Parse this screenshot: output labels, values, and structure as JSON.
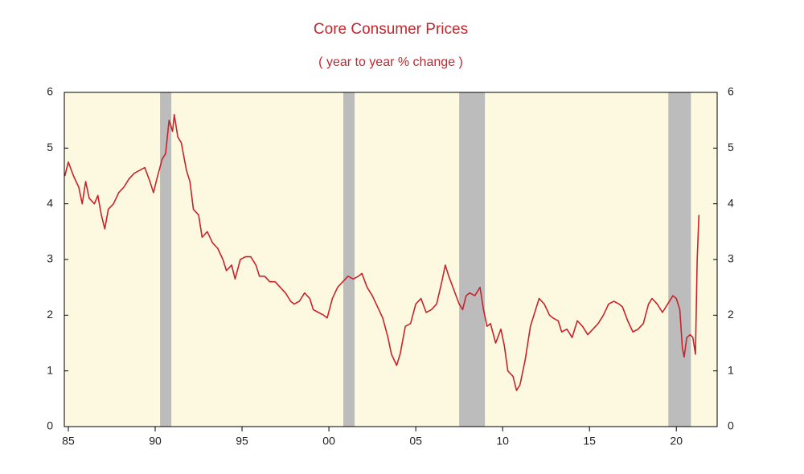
{
  "chart_data": {
    "type": "line",
    "title": "Core Consumer Prices",
    "subtitle": "( year to year % change )",
    "background": "#fdf9e1",
    "band_color": "#bcbcbc",
    "recession_bands": [
      {
        "start": 1990.28,
        "end": 1990.93
      },
      {
        "start": 2000.83,
        "end": 2001.48
      },
      {
        "start": 2007.5,
        "end": 2008.98
      },
      {
        "start": 2019.54,
        "end": 2020.84
      }
    ],
    "xlim": [
      1984.77,
      2022.35
    ],
    "xticks": [
      {
        "value": 1985,
        "label": "85"
      },
      {
        "value": 1990,
        "label": "90"
      },
      {
        "value": 1995,
        "label": "95"
      },
      {
        "value": 2000,
        "label": "00"
      },
      {
        "value": 2005,
        "label": "05"
      },
      {
        "value": 2010,
        "label": "10"
      },
      {
        "value": 2015,
        "label": "15"
      },
      {
        "value": 2020,
        "label": "20"
      }
    ],
    "ylim": [
      0,
      6
    ],
    "yticks": [
      0,
      1,
      2,
      3,
      4,
      5,
      6
    ],
    "y2lim": [
      0,
      6
    ],
    "y2ticks": [
      0,
      1,
      2,
      3,
      4,
      5,
      6
    ],
    "x": [
      1984.8,
      1985.0,
      1985.3,
      1985.6,
      1985.8,
      1986.0,
      1986.2,
      1986.5,
      1986.7,
      1986.9,
      1987.1,
      1987.3,
      1987.6,
      1987.9,
      1988.2,
      1988.5,
      1988.8,
      1989.1,
      1989.4,
      1989.7,
      1989.9,
      1990.1,
      1990.4,
      1990.6,
      1990.8,
      1991.0,
      1991.1,
      1991.3,
      1991.5,
      1991.8,
      1992.0,
      1992.2,
      1992.5,
      1992.7,
      1993.0,
      1993.3,
      1993.6,
      1993.9,
      1994.1,
      1994.4,
      1994.6,
      1994.9,
      1995.2,
      1995.5,
      1995.8,
      1996.0,
      1996.3,
      1996.6,
      1996.9,
      1997.2,
      1997.5,
      1997.8,
      1998.0,
      1998.3,
      1998.6,
      1998.9,
      1999.1,
      1999.4,
      1999.7,
      1999.9,
      2000.2,
      2000.5,
      2000.8,
      2001.1,
      2001.4,
      2001.7,
      2001.9,
      2002.2,
      2002.5,
      2002.8,
      2003.1,
      2003.4,
      2003.6,
      2003.9,
      2004.1,
      2004.4,
      2004.7,
      2005.0,
      2005.3,
      2005.6,
      2005.9,
      2006.2,
      2006.5,
      2006.7,
      2006.9,
      2007.2,
      2007.5,
      2007.7,
      2007.9,
      2008.1,
      2008.4,
      2008.7,
      2008.9,
      2009.1,
      2009.3,
      2009.6,
      2009.9,
      2010.1,
      2010.3,
      2010.6,
      2010.8,
      2011.0,
      2011.3,
      2011.6,
      2011.9,
      2012.1,
      2012.4,
      2012.7,
      2012.9,
      2013.2,
      2013.4,
      2013.7,
      2014.0,
      2014.3,
      2014.6,
      2014.9,
      2015.2,
      2015.5,
      2015.8,
      2016.1,
      2016.4,
      2016.7,
      2016.9,
      2017.2,
      2017.5,
      2017.8,
      2018.1,
      2018.4,
      2018.6,
      2018.9,
      2019.2,
      2019.5,
      2019.8,
      2020.0,
      2020.2,
      2020.35,
      2020.45,
      2020.6,
      2020.8,
      2020.95,
      2021.1,
      2021.2,
      2021.3
    ],
    "series": [
      {
        "color": "#c8232c",
        "values": [
          4.5,
          4.75,
          4.5,
          4.3,
          4.0,
          4.4,
          4.1,
          4.0,
          4.15,
          3.8,
          3.55,
          3.9,
          4.0,
          4.2,
          4.3,
          4.45,
          4.55,
          4.6,
          4.65,
          4.4,
          4.2,
          4.45,
          4.8,
          4.9,
          5.5,
          5.3,
          5.6,
          5.2,
          5.1,
          4.6,
          4.4,
          3.9,
          3.8,
          3.4,
          3.5,
          3.3,
          3.2,
          3.0,
          2.8,
          2.9,
          2.65,
          3.0,
          3.05,
          3.05,
          2.9,
          2.7,
          2.7,
          2.6,
          2.6,
          2.5,
          2.4,
          2.25,
          2.2,
          2.25,
          2.4,
          2.3,
          2.1,
          2.05,
          2.0,
          1.95,
          2.3,
          2.5,
          2.6,
          2.7,
          2.65,
          2.7,
          2.75,
          2.5,
          2.35,
          2.15,
          1.95,
          1.6,
          1.3,
          1.1,
          1.3,
          1.8,
          1.85,
          2.2,
          2.3,
          2.05,
          2.1,
          2.2,
          2.6,
          2.9,
          2.7,
          2.45,
          2.2,
          2.1,
          2.35,
          2.4,
          2.35,
          2.5,
          2.1,
          1.8,
          1.85,
          1.5,
          1.75,
          1.45,
          1.0,
          0.9,
          0.65,
          0.75,
          1.2,
          1.8,
          2.1,
          2.3,
          2.2,
          2.0,
          1.95,
          1.9,
          1.7,
          1.75,
          1.6,
          1.9,
          1.8,
          1.65,
          1.75,
          1.85,
          2.0,
          2.2,
          2.25,
          2.2,
          2.15,
          1.9,
          1.7,
          1.75,
          1.85,
          2.2,
          2.3,
          2.2,
          2.05,
          2.2,
          2.35,
          2.3,
          2.1,
          1.4,
          1.25,
          1.6,
          1.65,
          1.6,
          1.3,
          3.0,
          3.8
        ]
      }
    ]
  }
}
